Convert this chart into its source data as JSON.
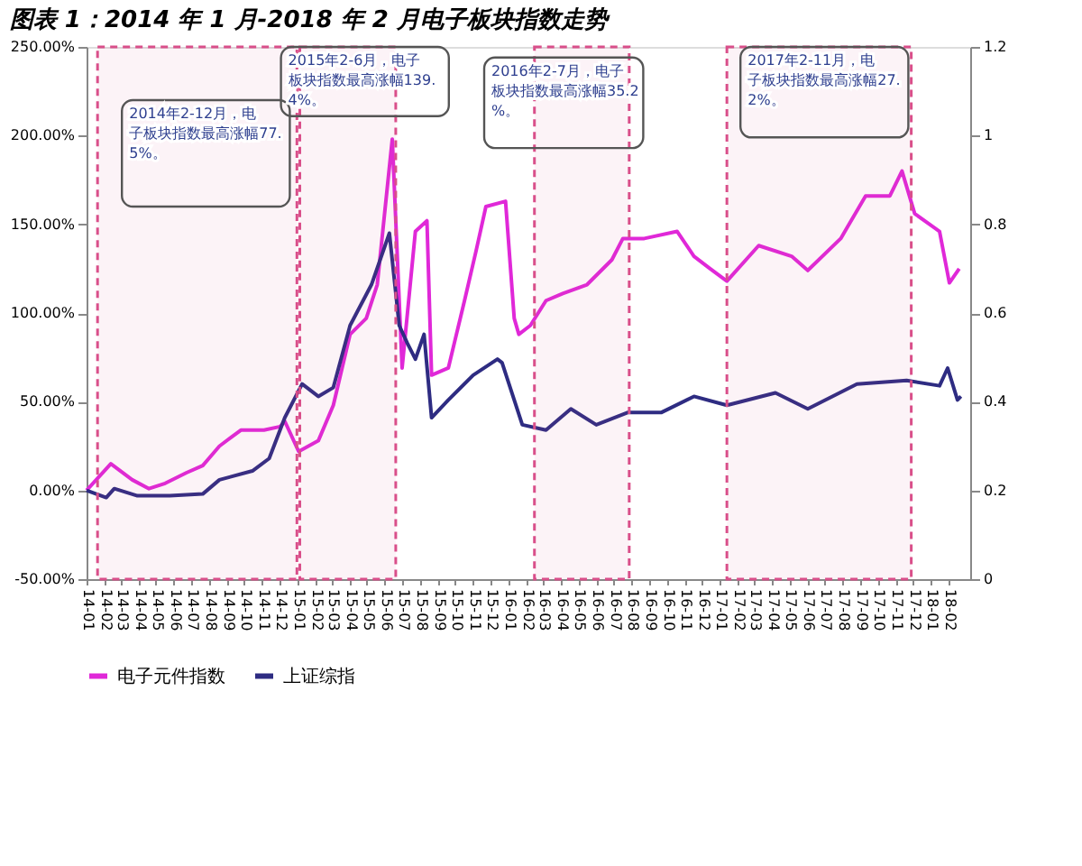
{
  "chart_data": {
    "type": "line",
    "title": "图表 1：2014 年 1 月-2018 年 2 月电子板块指数走势",
    "x": [
      "2014-01-01",
      "2014-02-12",
      "2014-03-21",
      "2014-04-19",
      "2014-05-17",
      "2014-06-23",
      "2014-07-21",
      "2014-08-19",
      "2014-09-25",
      "2014-11-04",
      "2014-12-02",
      "2014-12-10",
      "2015-01-03",
      "2015-02-06",
      "2015-03-04",
      "2015-04-02",
      "2015-04-30",
      "2015-05-19",
      "2015-06-14",
      "2015-07-01",
      "2015-07-24",
      "2015-08-13",
      "2015-08-21",
      "2015-09-19",
      "2015-10-17",
      "2015-11-06",
      "2015-11-23",
      "2015-12-27",
      "2016-01-11",
      "2016-01-19",
      "2016-02-08",
      "2016-03-06",
      "2016-04-04",
      "2016-05-16",
      "2016-06-28",
      "2016-07-17",
      "2016-08-23",
      "2016-10-19",
      "2016-11-17",
      "2016-12-15",
      "2017-01-13",
      "2017-03-09",
      "2017-05-05",
      "2017-06-02",
      "2017-07-29",
      "2017-09-10",
      "2017-10-22",
      "2017-11-12",
      "2017-12-04",
      "2018-01-16",
      "2018-02-02",
      "2018-02-19"
    ],
    "series": [
      {
        "name": "电子元件指数",
        "color": "#e028d8",
        "values": [
          0,
          15,
          6,
          1,
          4,
          10,
          14,
          25,
          34,
          34,
          36,
          39,
          22,
          28,
          48,
          88,
          97,
          116,
          198,
          69,
          146,
          152,
          65,
          69,
          107,
          135,
          160,
          163,
          97,
          88,
          93,
          107,
          111,
          116,
          130,
          142,
          142,
          146,
          132,
          125,
          118,
          138,
          132,
          124,
          142,
          166,
          166,
          180,
          156,
          146,
          117,
          125
        ]
      },
      {
        "name": "上证综指",
        "color": "#2e2c82",
        "x": [
          "2014-01-01",
          "2014-02-04",
          "2014-02-18",
          "2014-03-30",
          "2014-05-25",
          "2014-07-21",
          "2014-08-19",
          "2014-10-15",
          "2014-11-13",
          "2014-12-10",
          "2015-01-09",
          "2015-02-06",
          "2015-03-04",
          "2015-04-02",
          "2015-05-09",
          "2015-06-09",
          "2015-06-26",
          "2015-07-10",
          "2015-07-24",
          "2015-08-08",
          "2015-08-21",
          "2015-09-19",
          "2015-11-01",
          "2015-12-13",
          "2015-12-21",
          "2016-01-11",
          "2016-01-25",
          "2016-03-06",
          "2016-04-18",
          "2016-06-01",
          "2016-07-26",
          "2016-09-22",
          "2016-11-17",
          "2017-01-13",
          "2017-04-07",
          "2017-06-02",
          "2017-08-26",
          "2017-11-20",
          "2018-01-16",
          "2018-01-30",
          "2018-02-16",
          "2018-02-22"
        ],
        "values": [
          0,
          -4,
          1,
          -3,
          -3,
          -2,
          6,
          11,
          18,
          41,
          60,
          53,
          58,
          93,
          116,
          145,
          93,
          83,
          74,
          88,
          41,
          51,
          65,
          74,
          72,
          51,
          37,
          34,
          46,
          37,
          44,
          44,
          53,
          48,
          55,
          46,
          60,
          62,
          59,
          69,
          51,
          53
        ]
      }
    ],
    "xlim": [
      "2014-01-01",
      "2018-03-10"
    ],
    "xticks": [
      {
        "value": "2014-01",
        "label": "14-01"
      },
      {
        "value": "2014-02",
        "label": "14-02"
      },
      {
        "value": "2014-03",
        "label": "14-03"
      },
      {
        "value": "2014-04",
        "label": "14-04"
      },
      {
        "value": "2014-05",
        "label": "14-05"
      },
      {
        "value": "2014-06",
        "label": "14-06"
      },
      {
        "value": "2014-07",
        "label": "14-07"
      },
      {
        "value": "2014-08",
        "label": "14-08"
      },
      {
        "value": "2014-09",
        "label": "14-09"
      },
      {
        "value": "2014-10",
        "label": "14-10"
      },
      {
        "value": "2014-11",
        "label": "14-11"
      },
      {
        "value": "2014-12",
        "label": "14-12"
      },
      {
        "value": "2015-01",
        "label": "15-01"
      },
      {
        "value": "2015-02",
        "label": "15-02"
      },
      {
        "value": "2015-03",
        "label": "15-03"
      },
      {
        "value": "2015-04",
        "label": "15-04"
      },
      {
        "value": "2015-05",
        "label": "15-05"
      },
      {
        "value": "2015-06",
        "label": "15-06"
      },
      {
        "value": "2015-07",
        "label": "15-07"
      },
      {
        "value": "2015-08",
        "label": "15-08"
      },
      {
        "value": "2015-09",
        "label": "15-09"
      },
      {
        "value": "2015-10",
        "label": "15-10"
      },
      {
        "value": "2015-11",
        "label": "15-11"
      },
      {
        "value": "2015-12",
        "label": "15-12"
      },
      {
        "value": "2016-01",
        "label": "16-01"
      },
      {
        "value": "2016-02",
        "label": "16-02"
      },
      {
        "value": "2016-03",
        "label": "16-03"
      },
      {
        "value": "2016-04",
        "label": "16-04"
      },
      {
        "value": "2016-05",
        "label": "16-05"
      },
      {
        "value": "2016-06",
        "label": "16-06"
      },
      {
        "value": "2016-07",
        "label": "16-07"
      },
      {
        "value": "2016-08",
        "label": "16-08"
      },
      {
        "value": "2016-09",
        "label": "16-09"
      },
      {
        "value": "2016-10",
        "label": "16-10"
      },
      {
        "value": "2016-11",
        "label": "16-11"
      },
      {
        "value": "2016-12",
        "label": "16-12"
      },
      {
        "value": "2017-01",
        "label": "17-01"
      },
      {
        "value": "2017-02",
        "label": "17-02"
      },
      {
        "value": "2017-03",
        "label": "17-03"
      },
      {
        "value": "2017-04",
        "label": "17-04"
      },
      {
        "value": "2017-05",
        "label": "17-05"
      },
      {
        "value": "2017-06",
        "label": "17-06"
      },
      {
        "value": "2017-07",
        "label": "17-07"
      },
      {
        "value": "2017-08",
        "label": "17-08"
      },
      {
        "value": "2017-09",
        "label": "17-09"
      },
      {
        "value": "2017-10",
        "label": "17-10"
      },
      {
        "value": "2017-11",
        "label": "17-11"
      },
      {
        "value": "2017-12",
        "label": "17-12"
      },
      {
        "value": "2018-01",
        "label": "18-01"
      },
      {
        "value": "2018-02",
        "label": "18-02"
      }
    ],
    "ylim": [
      -50,
      250
    ],
    "yticks": [
      {
        "value": -50,
        "label": "-50.00%"
      },
      {
        "value": 0,
        "label": "0.00%"
      },
      {
        "value": 50,
        "label": "50.00%"
      },
      {
        "value": 100,
        "label": "100.00%"
      },
      {
        "value": 150,
        "label": "150.00%"
      },
      {
        "value": 200,
        "label": "200.00%"
      },
      {
        "value": 250,
        "label": "250.00%"
      }
    ],
    "y2lim": [
      0,
      1.2
    ],
    "y2ticks": [
      0,
      0.2,
      0.4,
      0.6,
      0.8,
      1,
      1.2
    ],
    "bands": [
      {
        "axis": "x",
        "from": "2014-01-20",
        "to": "2014-12-31",
        "color": "#d94f8a"
      },
      {
        "axis": "x",
        "from": "2015-01-05",
        "to": "2015-06-20",
        "color": "#d94f8a"
      },
      {
        "axis": "x",
        "from": "2016-02-15",
        "to": "2016-07-28",
        "color": "#d94f8a"
      },
      {
        "axis": "x",
        "from": "2017-01-13",
        "to": "2017-11-28",
        "color": "#d94f8a"
      }
    ],
    "annotations": [
      "2014年2-12月，电子板块指数最高涨幅77.5%。",
      "2015年2-6月，电子板块指数最高涨幅139.4%。",
      "2016年2-7月，电子板块指数最高涨幅35.2%。",
      "2017年2-11月，电子板块指数最高涨幅27.2%。"
    ],
    "legend": "bottom",
    "grid": false,
    "marker": "none",
    "line_style": "solid"
  }
}
